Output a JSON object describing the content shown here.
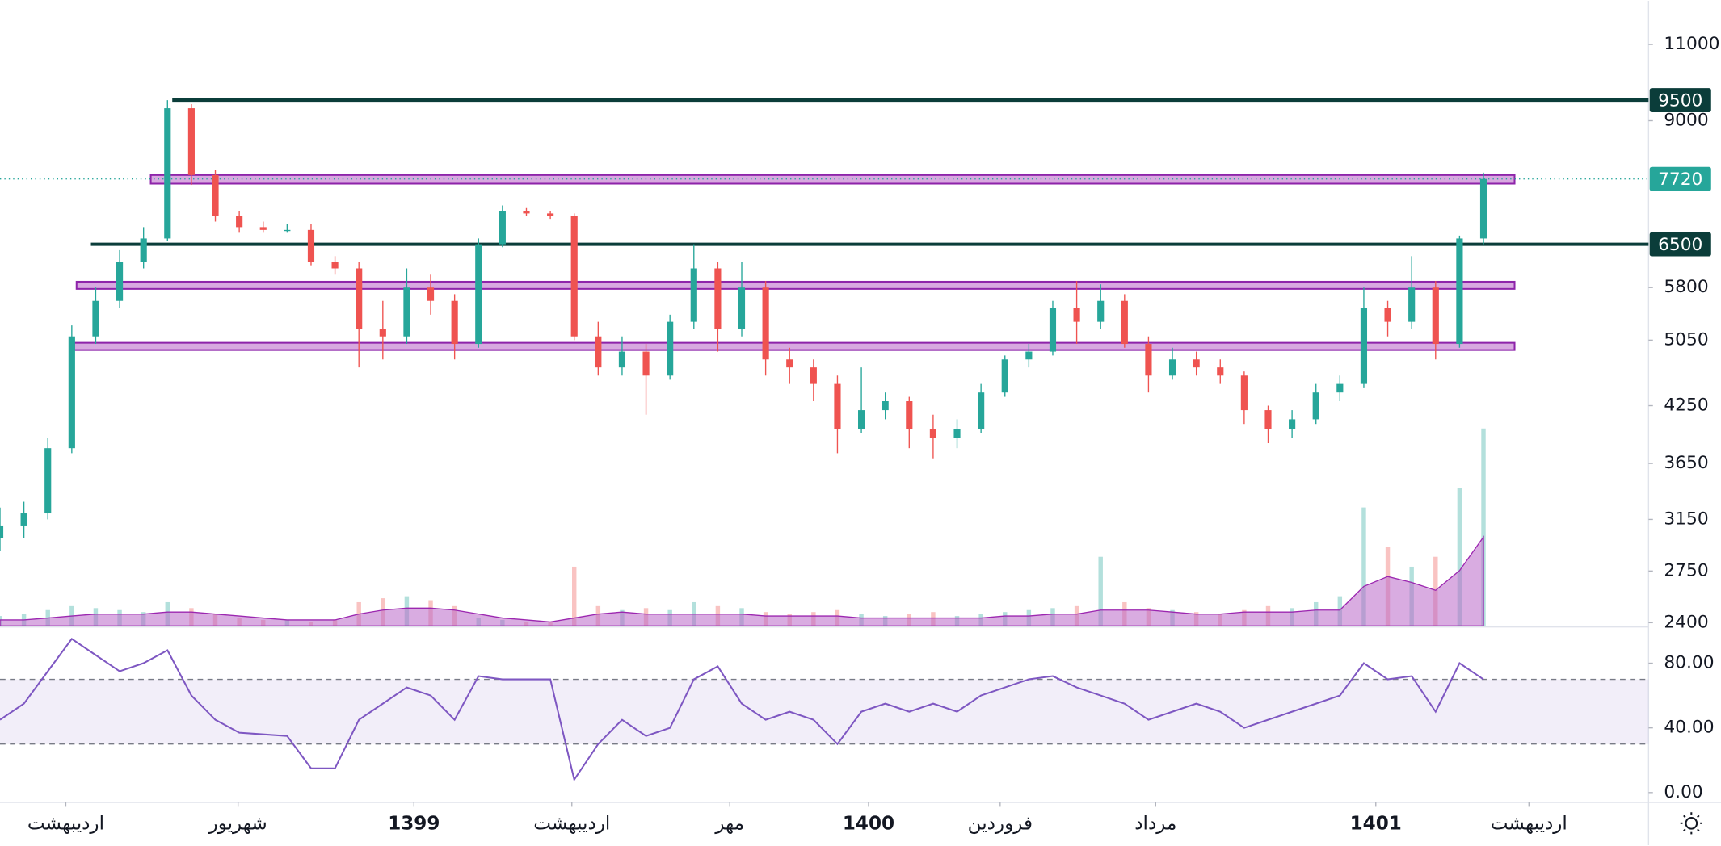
{
  "chart_data": {
    "type": "candlestick",
    "log_scale": true,
    "xlim": [
      0,
      68.9
    ],
    "xticks": [
      {
        "value": 2.75,
        "label": "اردیبهشت"
      },
      {
        "value": 9.95,
        "label": "شهریور"
      },
      {
        "value": 17.3,
        "label": "1399"
      },
      {
        "value": 23.9,
        "label": "اردیبهشت"
      },
      {
        "value": 30.5,
        "label": "مهر"
      },
      {
        "value": 36.3,
        "label": "1400"
      },
      {
        "value": 41.8,
        "label": "فروردین"
      },
      {
        "value": 48.3,
        "label": "مرداد"
      },
      {
        "value": 57.5,
        "label": "1401"
      },
      {
        "value": 63.9,
        "label": "اردیبهشت"
      }
    ],
    "ylim": [
      2380,
      12340
    ],
    "yticks": [
      11000,
      9000,
      5800,
      5050,
      4250,
      3650,
      3150,
      2750,
      2400
    ],
    "up_color": "#26a69a",
    "down_color": "#ef5350",
    "candles": {
      "open": [
        3000,
        3100,
        3200,
        3800,
        5100,
        5600,
        6200,
        6600,
        9300,
        7800,
        7000,
        6800,
        6750,
        6750,
        6200,
        6100,
        5200,
        5100,
        5800,
        5600,
        5000,
        6500,
        7100,
        7050,
        7000,
        5100,
        4700,
        4900,
        4600,
        5300,
        6100,
        5200,
        5800,
        4800,
        4700,
        4500,
        4000,
        4200,
        4300,
        4000,
        3900,
        4000,
        4400,
        4800,
        4900,
        5500,
        5300,
        5600,
        5000,
        4600,
        4800,
        4700,
        4600,
        4200,
        4000,
        4100,
        4400,
        4500,
        5500,
        5300,
        5800,
        5000,
        6600
      ],
      "high": [
        3250,
        3300,
        3900,
        5250,
        5800,
        6400,
        6800,
        9500,
        9400,
        7900,
        7100,
        6900,
        6850,
        6850,
        6300,
        6200,
        5600,
        6100,
        6000,
        5700,
        6600,
        7200,
        7150,
        7100,
        7050,
        5300,
        5100,
        5000,
        5400,
        6500,
        6200,
        6200,
        5900,
        4950,
        4800,
        4600,
        4700,
        4400,
        4350,
        4150,
        4100,
        4500,
        4850,
        5000,
        5600,
        5900,
        5850,
        5700,
        5100,
        4950,
        4900,
        4800,
        4650,
        4250,
        4200,
        4500,
        4600,
        5800,
        5600,
        6300,
        5900,
        6650,
        7850
      ],
      "low": [
        2900,
        3000,
        3150,
        3750,
        5000,
        5500,
        6100,
        6550,
        7600,
        6900,
        6700,
        6700,
        6700,
        6150,
        6000,
        4700,
        4800,
        5000,
        5400,
        4800,
        4950,
        6450,
        7000,
        6950,
        5050,
        4600,
        4600,
        4150,
        4550,
        5200,
        4900,
        5100,
        4600,
        4500,
        4300,
        3750,
        3950,
        4100,
        3800,
        3700,
        3800,
        3950,
        4350,
        4700,
        4850,
        5000,
        5200,
        4950,
        4400,
        4550,
        4600,
        4500,
        4050,
        3850,
        3900,
        4050,
        4300,
        4450,
        5100,
        5200,
        4800,
        4950,
        6500
      ],
      "close": [
        3100,
        3200,
        3800,
        5100,
        5600,
        6200,
        6600,
        9300,
        7800,
        7000,
        6800,
        6750,
        6750,
        6200,
        6100,
        5200,
        5100,
        5800,
        5600,
        5000,
        6500,
        7100,
        7050,
        7000,
        5100,
        4700,
        4900,
        4600,
        5300,
        6100,
        5200,
        5800,
        4800,
        4700,
        4500,
        4000,
        4200,
        4300,
        4000,
        3900,
        4000,
        4400,
        4800,
        4900,
        5500,
        5300,
        5600,
        5000,
        4600,
        4800,
        4700,
        4600,
        4200,
        4000,
        4100,
        4400,
        4500,
        5500,
        5300,
        5800,
        5000,
        6600,
        7720
      ]
    },
    "levels": [
      {
        "value": 9500,
        "start": 7.2,
        "color": "#0b3d3a"
      },
      {
        "value": 6500,
        "start": 3.8,
        "color": "#0b3d3a"
      }
    ],
    "zones": [
      {
        "low": 7625,
        "high": 7800,
        "start": 6.3,
        "end": 63.3,
        "color": "#ce93d8"
      },
      {
        "low": 5780,
        "high": 5890,
        "start": 3.2,
        "end": 63.3,
        "color": "#ce93d8"
      },
      {
        "low": 4920,
        "high": 5015,
        "start": 3.1,
        "end": 63.3,
        "color": "#ce93d8"
      }
    ],
    "last_price": {
      "value": 7720,
      "color": "#26a69a"
    },
    "volume": {
      "ylim": [
        0,
        100
      ],
      "values": [
        5,
        6,
        8,
        10,
        9,
        8,
        7,
        12,
        9,
        6,
        4,
        3,
        3,
        2,
        3,
        12,
        14,
        15,
        13,
        10,
        4,
        3,
        2,
        2,
        30,
        10,
        8,
        9,
        8,
        12,
        10,
        9,
        7,
        6,
        7,
        8,
        6,
        5,
        6,
        7,
        5,
        6,
        7,
        8,
        9,
        10,
        35,
        12,
        9,
        8,
        7,
        6,
        8,
        10,
        9,
        12,
        15,
        60,
        40,
        30,
        35,
        70,
        100
      ],
      "ma": [
        3,
        3,
        4,
        5,
        6,
        6,
        6,
        7,
        7,
        6,
        5,
        4,
        3,
        3,
        3,
        6,
        8,
        9,
        9,
        8,
        6,
        4,
        3,
        2,
        4,
        6,
        7,
        6,
        6,
        6,
        6,
        6,
        5,
        5,
        5,
        5,
        4,
        4,
        4,
        4,
        4,
        4,
        5,
        5,
        6,
        6,
        8,
        8,
        8,
        7,
        6,
        6,
        7,
        7,
        7,
        8,
        8,
        20,
        25,
        22,
        18,
        28,
        45
      ],
      "ma_color": "#ba68c8"
    },
    "rsi": {
      "color": "#7e57c2",
      "ylim": [
        -5.4,
        101.7
      ],
      "yticks": [
        {
          "value": 80,
          "label": "80.00"
        },
        {
          "value": 40,
          "label": "40.00"
        },
        {
          "value": 0,
          "label": "0.00"
        }
      ],
      "bands": [
        30,
        70
      ],
      "values": [
        45,
        55,
        75,
        95,
        85,
        75,
        80,
        88,
        60,
        45,
        37,
        36,
        35,
        15,
        15,
        45,
        55,
        65,
        60,
        45,
        72,
        70,
        70,
        70,
        8,
        30,
        45,
        35,
        40,
        70,
        78,
        55,
        45,
        50,
        45,
        30,
        50,
        55,
        50,
        55,
        50,
        60,
        65,
        70,
        72,
        65,
        60,
        55,
        45,
        50,
        55,
        50,
        40,
        45,
        50,
        55,
        60,
        80,
        70,
        72,
        50,
        80,
        70
      ]
    }
  }
}
